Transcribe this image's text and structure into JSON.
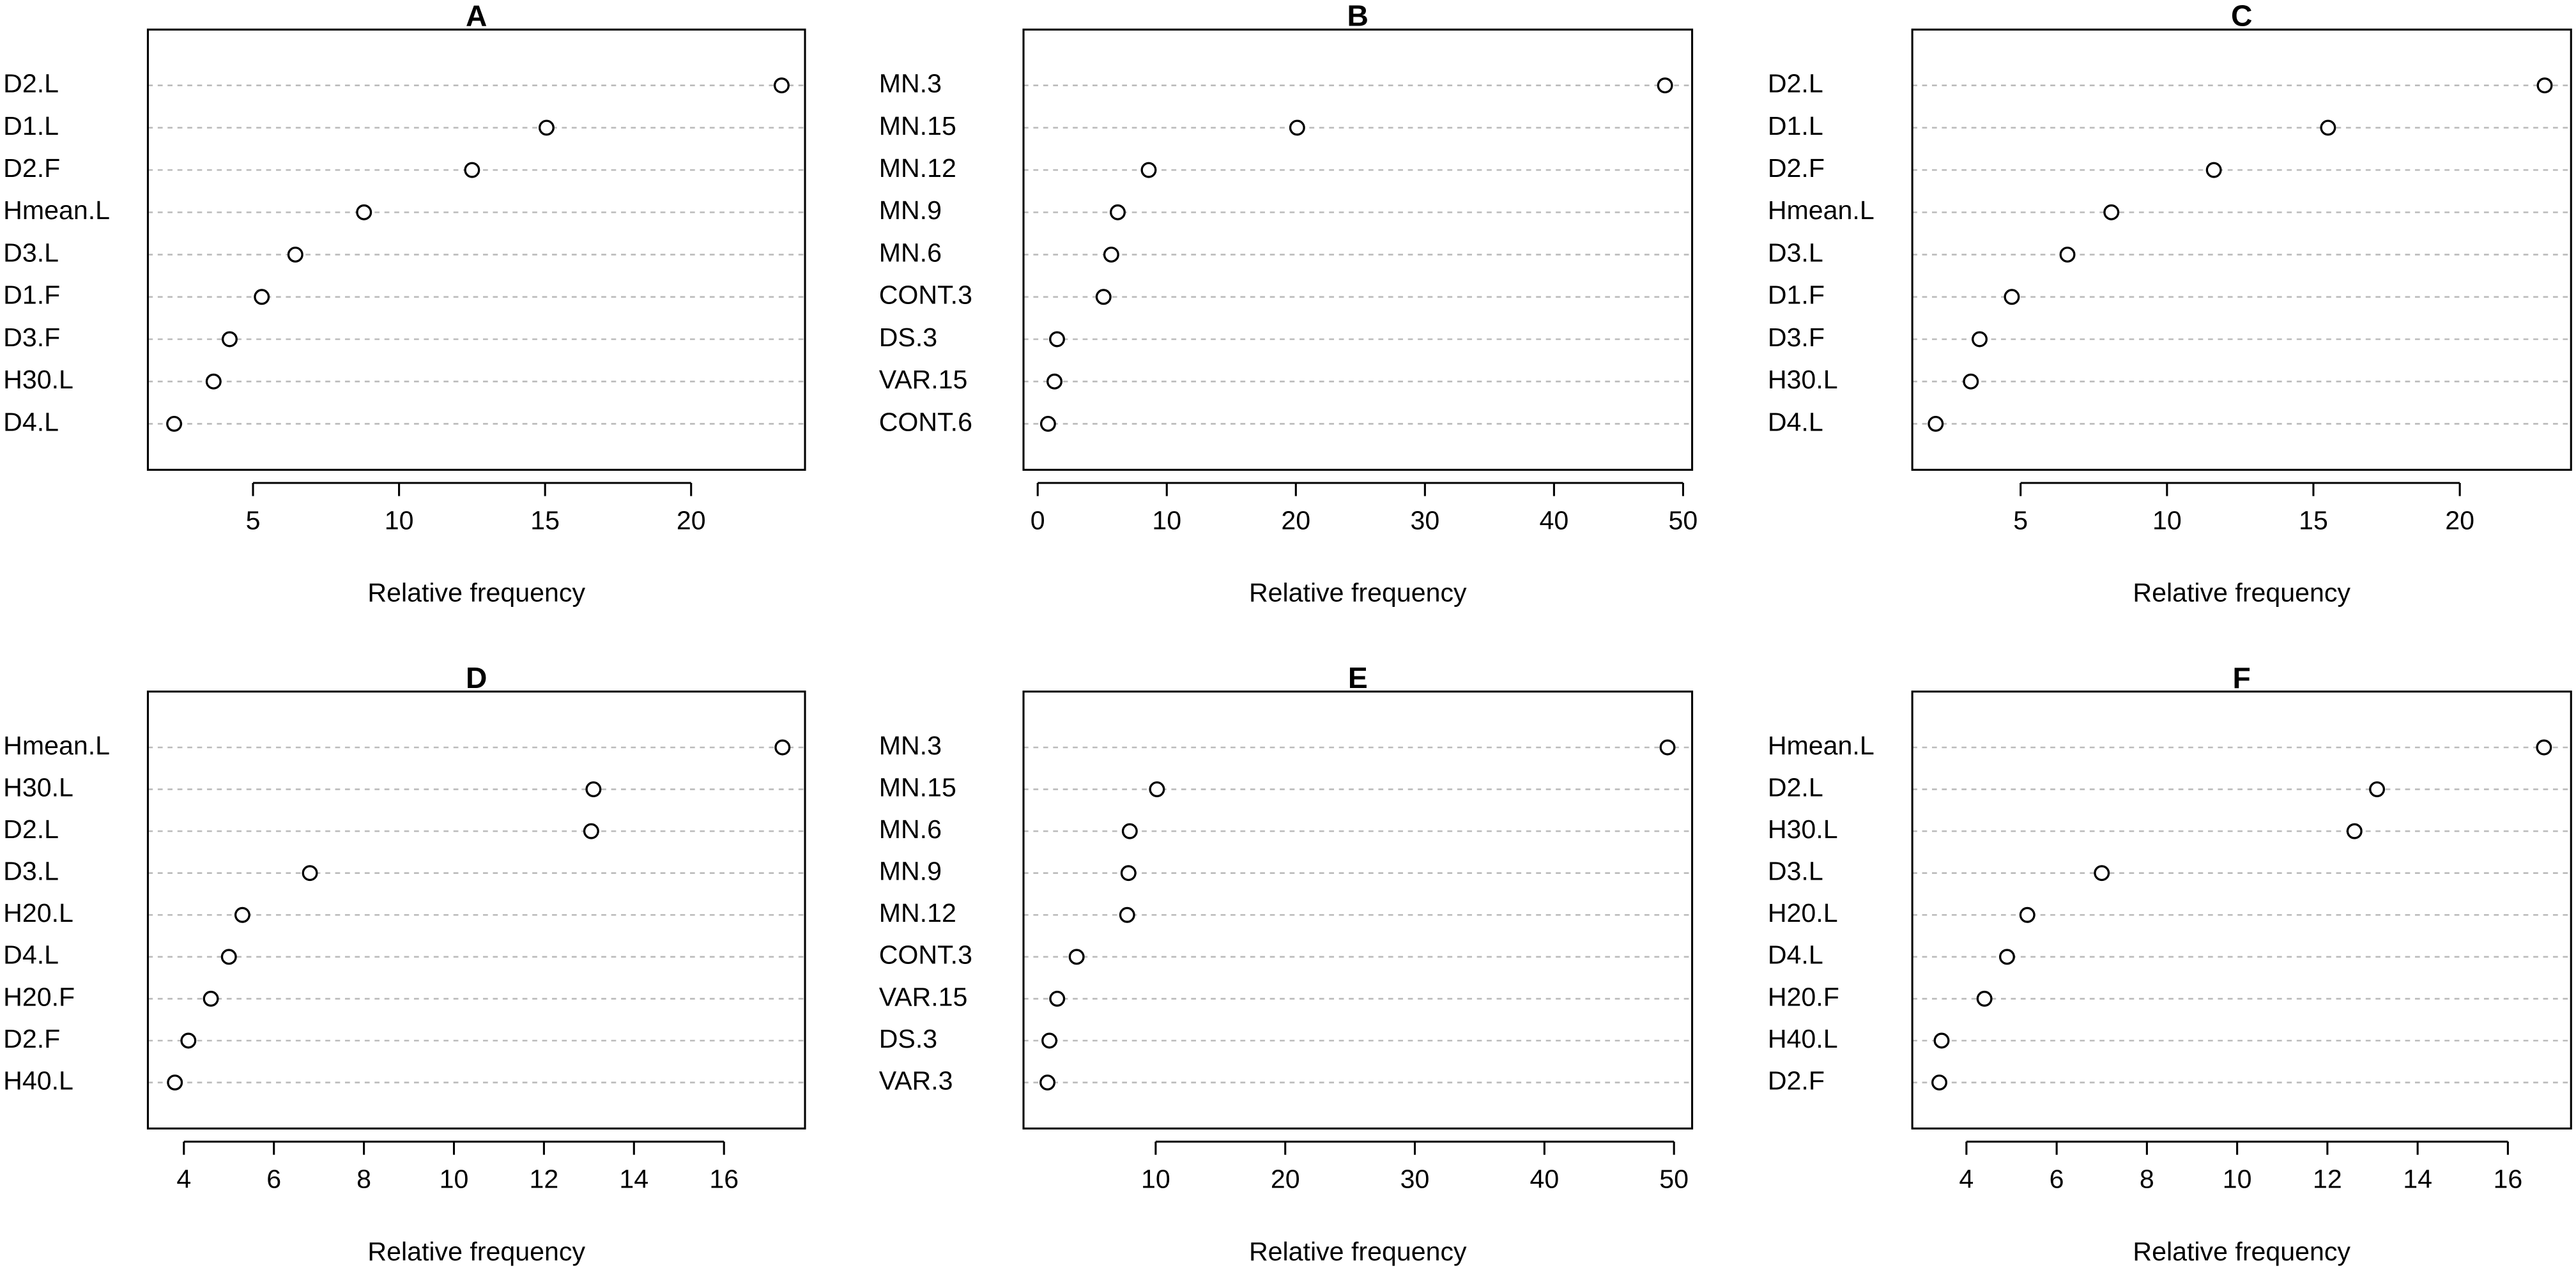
{
  "chart_data": [
    {
      "type": "dot",
      "title": "A",
      "x_label": "Relative frequency",
      "categories": [
        "D2.L",
        "D1.L",
        "D2.F",
        "Hmean.L",
        "D3.L",
        "D1.F",
        "D3.F",
        "H30.L",
        "D4.L"
      ],
      "values": [
        23.1,
        15.05,
        12.5,
        8.8,
        6.45,
        5.3,
        4.2,
        3.65,
        2.3
      ],
      "xlim": [
        1.4,
        23.9
      ],
      "xticks": [
        5,
        10,
        15,
        20
      ],
      "grid": true
    },
    {
      "type": "dot",
      "title": "B",
      "x_label": "Relative frequency",
      "categories": [
        "MN.3",
        "MN.15",
        "MN.12",
        "MN.9",
        "MN.6",
        "CONT.3",
        "DS.3",
        "VAR.15",
        "CONT.6"
      ],
      "values": [
        48.6,
        20.1,
        8.6,
        6.2,
        5.7,
        5.1,
        1.5,
        1.3,
        0.8
      ],
      "xlim": [
        -1.1,
        50.7
      ],
      "xticks": [
        0,
        10,
        20,
        30,
        40,
        50
      ],
      "grid": true
    },
    {
      "type": "dot",
      "title": "C",
      "x_label": "Relative frequency",
      "categories": [
        "D2.L",
        "D1.L",
        "D2.F",
        "Hmean.L",
        "D3.L",
        "D1.F",
        "D3.F",
        "H30.L",
        "D4.L"
      ],
      "values": [
        22.9,
        15.5,
        11.6,
        8.1,
        6.6,
        4.7,
        3.6,
        3.3,
        2.1
      ],
      "xlim": [
        1.3,
        23.8
      ],
      "xticks": [
        5,
        10,
        15,
        20
      ],
      "grid": true
    },
    {
      "type": "dot",
      "title": "D",
      "x_label": "Relative frequency",
      "categories": [
        "Hmean.L",
        "H30.L",
        "D2.L",
        "D3.L",
        "H20.L",
        "D4.L",
        "H20.F",
        "D2.F",
        "H40.L"
      ],
      "values": [
        17.3,
        13.1,
        13.05,
        6.8,
        5.3,
        5.0,
        4.6,
        4.1,
        3.8
      ],
      "xlim": [
        3.2,
        17.8
      ],
      "xticks": [
        4,
        6,
        8,
        10,
        12,
        14,
        16
      ],
      "grid": true
    },
    {
      "type": "dot",
      "title": "E",
      "x_label": "Relative frequency",
      "categories": [
        "MN.3",
        "MN.15",
        "MN.6",
        "MN.9",
        "MN.12",
        "CONT.3",
        "VAR.15",
        "DS.3",
        "VAR.3"
      ],
      "values": [
        49.5,
        10.1,
        8.0,
        7.9,
        7.8,
        3.9,
        2.4,
        1.8,
        1.65
      ],
      "xlim": [
        -0.2,
        51.4
      ],
      "xticks": [
        10,
        20,
        30,
        40,
        50
      ],
      "grid": true
    },
    {
      "type": "dot",
      "title": "F",
      "x_label": "Relative frequency",
      "categories": [
        "Hmean.L",
        "D2.L",
        "H30.L",
        "D3.L",
        "H20.L",
        "D4.L",
        "H20.F",
        "H40.L",
        "D2.F"
      ],
      "values": [
        16.8,
        13.1,
        12.6,
        7.0,
        5.35,
        4.9,
        4.4,
        3.45,
        3.4
      ],
      "xlim": [
        2.8,
        17.4
      ],
      "xticks": [
        4,
        6,
        8,
        10,
        12,
        14,
        16
      ],
      "grid": true
    }
  ]
}
